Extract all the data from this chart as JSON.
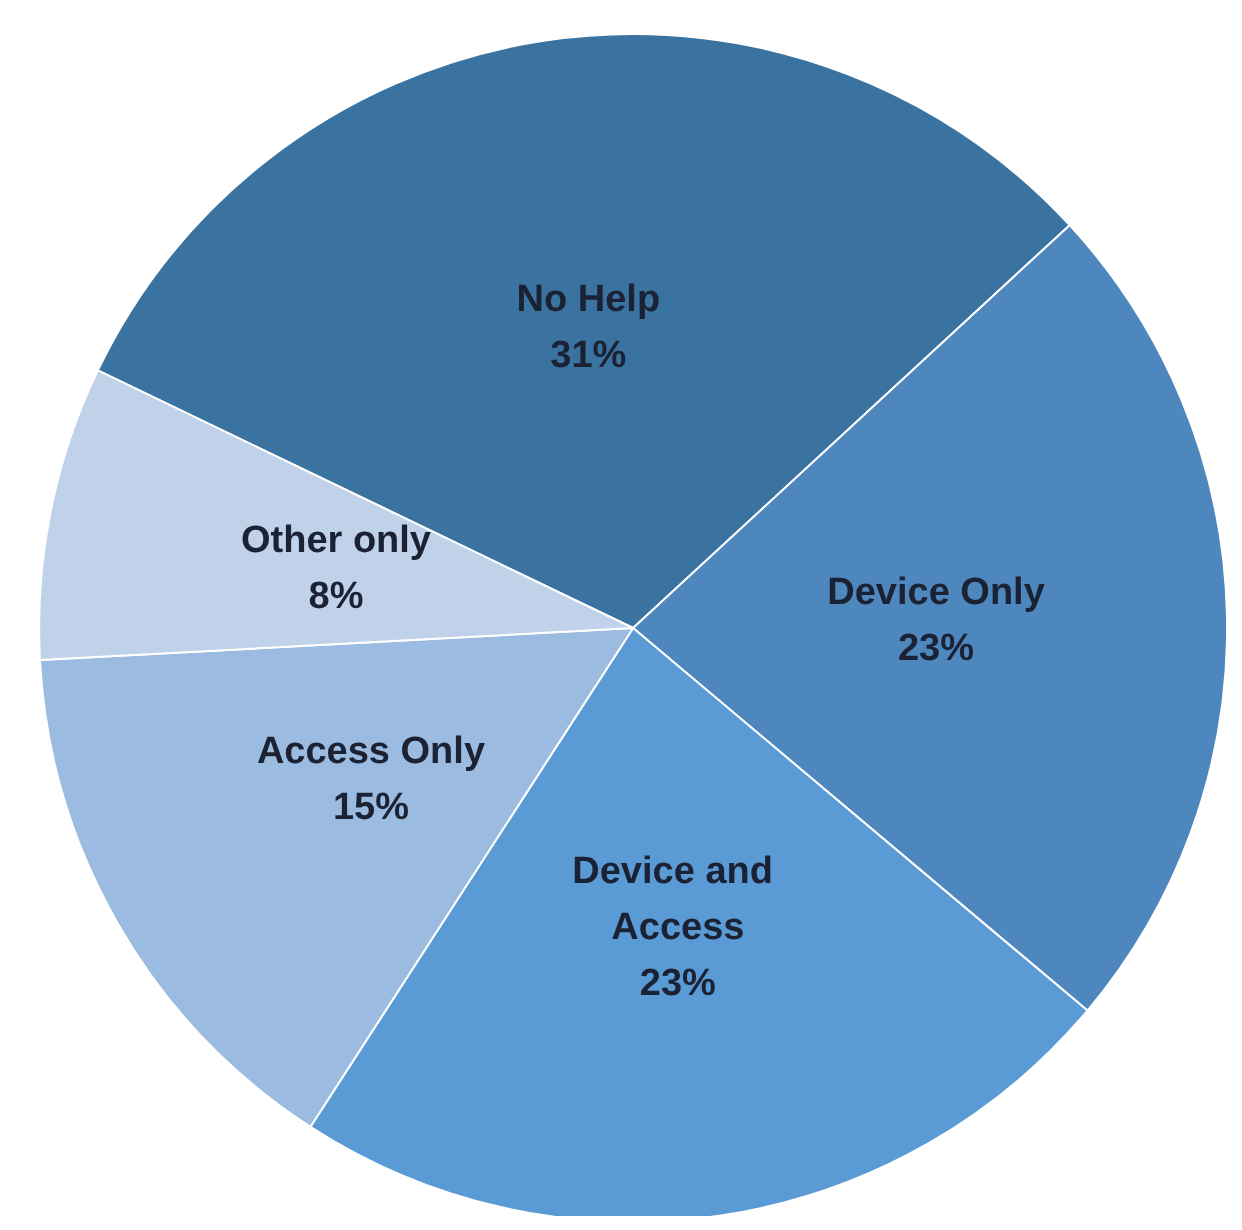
{
  "chart_data": {
    "type": "pie",
    "categories": [
      "No Help",
      "Device Only",
      "Device and Access",
      "Access Only",
      "Other only"
    ],
    "values": [
      31,
      23,
      23,
      15,
      8
    ],
    "value_labels": [
      "31%",
      "23%",
      "23%",
      "15%",
      "8%"
    ],
    "colors": [
      "#3b73a0",
      "#4d87bd",
      "#5b9bd5",
      "#9bbbe0",
      "#c0d2ea"
    ],
    "legend": false
  }
}
